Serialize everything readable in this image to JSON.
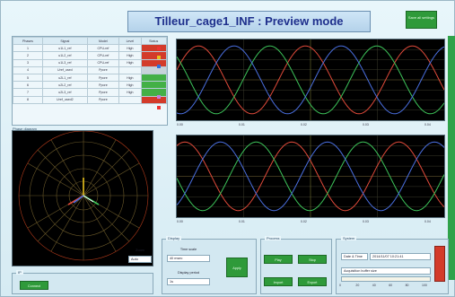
{
  "title": "Tilleur_cage1_INF : Preview mode",
  "top_button_label": "Save all settings",
  "table": {
    "headers": [
      "Phases",
      "Signal",
      "Model",
      "Level",
      "Status"
    ],
    "rows": [
      {
        "id": "1",
        "sig": "u1L1_ref",
        "model": "CPU-ref",
        "level": "High",
        "status": "red"
      },
      {
        "id": "2",
        "sig": "u1L2_ref",
        "model": "CPU-ref",
        "level": "High",
        "status": "red"
      },
      {
        "id": "3",
        "sig": "u1L3_ref",
        "model": "CPU-ref",
        "level": "High",
        "status": "red"
      },
      {
        "id": "4",
        "sig": "Uref_used",
        "model": "Ppore",
        "level": "",
        "status": "gray"
      },
      {
        "id": "5",
        "sig": "u2L1_ref",
        "model": "Ppore",
        "level": "High",
        "status": "green"
      },
      {
        "id": "6",
        "sig": "u2L2_ref",
        "model": "Ppore",
        "level": "High",
        "status": "green"
      },
      {
        "id": "7",
        "sig": "u2L3_ref",
        "model": "Ppore",
        "level": "High",
        "status": "green"
      },
      {
        "id": "8",
        "sig": "Uref_used2",
        "model": "Ppore",
        "level": "",
        "status": "red"
      }
    ]
  },
  "phasor": {
    "label": "Phase diagram",
    "zoom_label": "Zoom",
    "zoom_value": "Auto"
  },
  "chart_top": {
    "x_ticks": [
      "0.00",
      "0.01",
      "0.02",
      "0.03",
      "0.04"
    ]
  },
  "chart_bottom": {
    "x_ticks": [
      "0.00",
      "0.01",
      "0.02",
      "0.03",
      "0.04"
    ]
  },
  "display": {
    "title": "Display",
    "time_scale_label": "Time scale",
    "time_scale_value": "40 msec",
    "display_period_label": "Display period",
    "display_period_value": "1s",
    "apply_label": "Apply"
  },
  "process": {
    "title": "Process",
    "btn1": "Play",
    "btn2": "Stop",
    "btn3": "Import",
    "btn4": "Export"
  },
  "system": {
    "title": "System",
    "datetime_label": "Date & Time",
    "datetime_value": "2014/11/07 10:21:41",
    "buffer_label": "Acquisition buffer size",
    "scale_ticks": [
      "0",
      "20",
      "40",
      "60",
      "80",
      "100"
    ]
  },
  "bottom_left": {
    "title": "IP",
    "btn": "Connect"
  },
  "chart_data": [
    {
      "type": "line",
      "x": [
        0,
        0.01,
        0.02,
        0.03,
        0.04
      ],
      "series": [
        {
          "color": "#e04a3a"
        },
        {
          "color": "#3dc45a"
        },
        {
          "color": "#4a6fe0"
        }
      ]
    },
    {
      "type": "line",
      "x": [
        0,
        0.01,
        0.02,
        0.03,
        0.04
      ],
      "series": [
        {
          "color": "#e04a3a"
        },
        {
          "color": "#3dc45a"
        },
        {
          "color": "#4a6fe0"
        }
      ]
    }
  ]
}
